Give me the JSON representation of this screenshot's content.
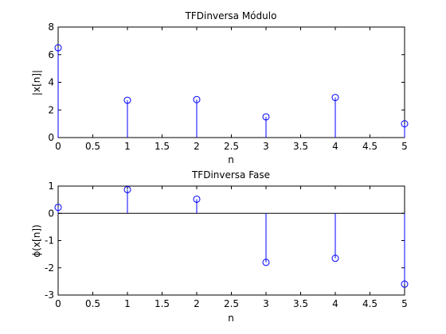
{
  "chart_data": [
    {
      "type": "stem",
      "title": "TFDinversa Módulo",
      "xlabel": "n",
      "ylabel": "|x[n]|",
      "xlim": [
        0,
        5
      ],
      "ylim": [
        0,
        8
      ],
      "xticks": [
        "0",
        "0.5",
        "1",
        "1.5",
        "2",
        "2.5",
        "3",
        "3.5",
        "4",
        "4.5",
        "5"
      ],
      "yticks": [
        "0",
        "2",
        "4",
        "6",
        "8"
      ],
      "baseline": 0,
      "x": [
        0,
        1,
        2,
        3,
        4,
        5
      ],
      "values": [
        6.5,
        2.7,
        2.75,
        1.5,
        2.9,
        1.0
      ],
      "color": "#0000ff",
      "grid": false
    },
    {
      "type": "stem",
      "title": "TFDinversa Fase",
      "xlabel": "n",
      "ylabel": "ϕ(x[n])",
      "xlim": [
        0,
        5
      ],
      "ylim": [
        -3,
        1
      ],
      "xticks": [
        "0",
        "0.5",
        "1",
        "1.5",
        "2",
        "2.5",
        "3",
        "3.5",
        "4",
        "4.5",
        "5"
      ],
      "yticks": [
        "-3",
        "-2",
        "-1",
        "0",
        "1"
      ],
      "baseline": 0,
      "x": [
        0,
        1,
        2,
        3,
        4,
        5
      ],
      "values": [
        0.22,
        0.87,
        0.52,
        -1.8,
        -1.65,
        -2.6
      ],
      "color": "#0000ff",
      "grid": false
    }
  ]
}
